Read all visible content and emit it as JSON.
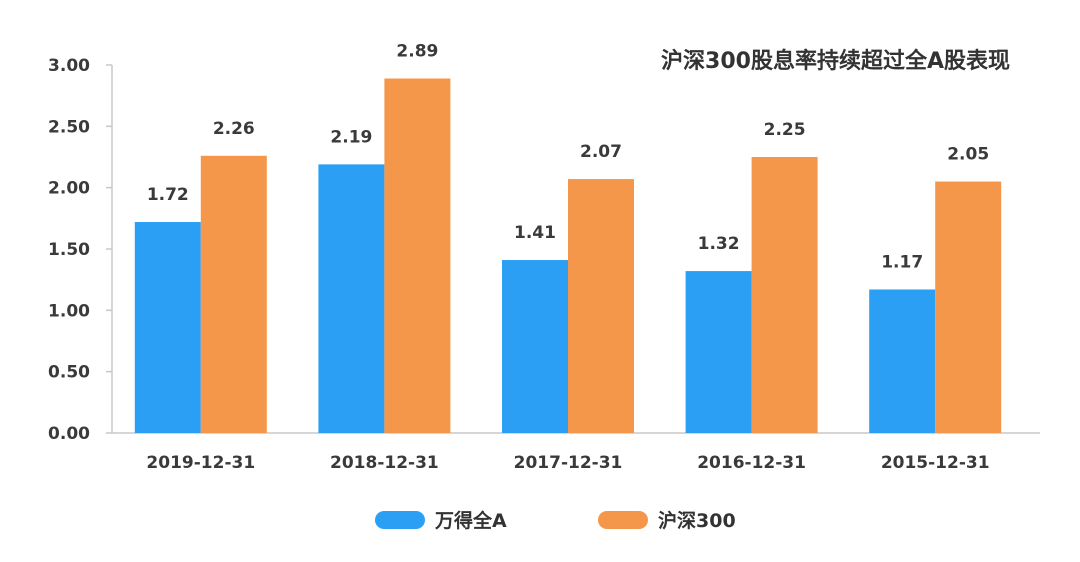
{
  "chart_data": {
    "type": "bar",
    "title": "沪深300股息率持续超过全A股表现",
    "categories": [
      "2019-12-31",
      "2018-12-31",
      "2017-12-31",
      "2016-12-31",
      "2015-12-31"
    ],
    "series": [
      {
        "name": "万得全A",
        "color": "#2b9ff4",
        "values": [
          1.72,
          2.19,
          1.41,
          1.32,
          1.17
        ]
      },
      {
        "name": "沪深300",
        "color": "#f5974a",
        "values": [
          2.26,
          2.89,
          2.07,
          2.25,
          2.05
        ]
      }
    ],
    "data_labels": [
      [
        "1.72",
        "2.19",
        "1.41",
        "1.32",
        "1.17"
      ],
      [
        "2.26",
        "2.89",
        "2.07",
        "2.25",
        "2.05"
      ]
    ],
    "ylim": [
      0,
      3.0
    ],
    "yticks": [
      "0.00",
      "0.50",
      "1.00",
      "1.50",
      "2.00",
      "2.50",
      "3.00"
    ],
    "grid": false,
    "legend_position": "bottom-center"
  }
}
